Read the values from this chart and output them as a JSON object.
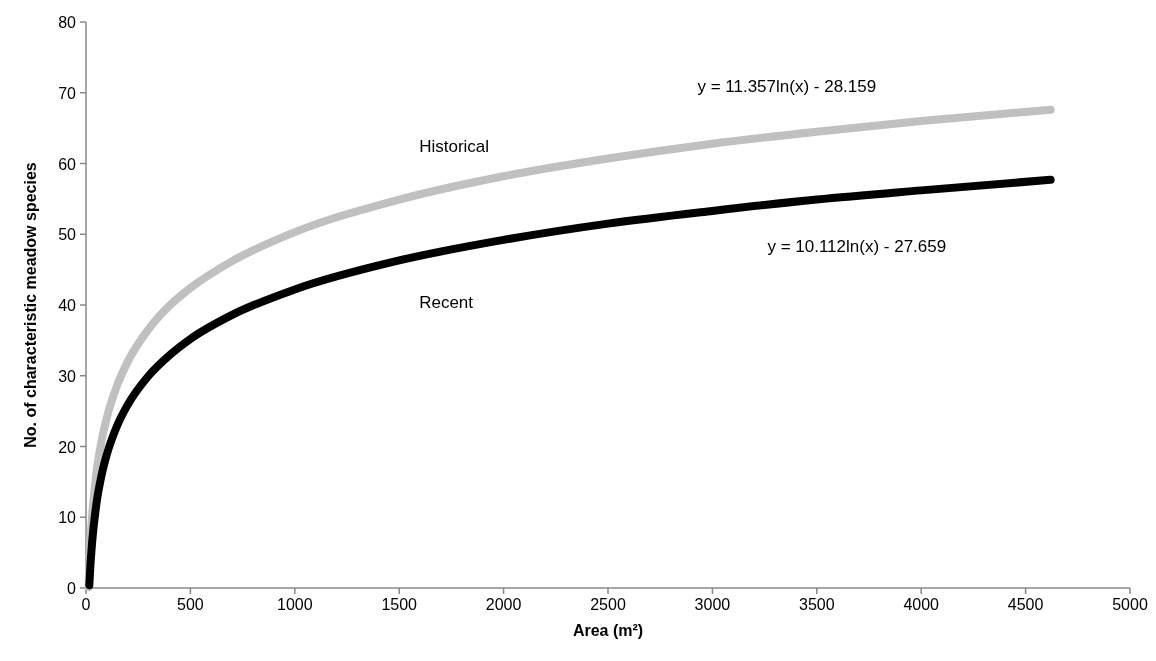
{
  "chart_data": {
    "type": "line",
    "xlabel": "Area (m²)",
    "ylabel": "No. of characteristic meadow species",
    "xlim": [
      0,
      5000
    ],
    "xticks": [
      0,
      500,
      1000,
      1500,
      2000,
      2500,
      3000,
      3500,
      4000,
      4500,
      5000
    ],
    "ylim": [
      0,
      80
    ],
    "yticks": [
      0,
      10,
      20,
      30,
      40,
      50,
      60,
      70,
      80
    ],
    "grid": false,
    "marker": "none",
    "line_style": "solid",
    "series": [
      {
        "name": "Historical",
        "color": "#c0c0c0",
        "x": [
          12,
          20,
          30,
          50,
          75,
          100,
          150,
          200,
          300,
          400,
          500,
          700,
          1000,
          1500,
          2000,
          2500,
          3000,
          3500,
          4000,
          4620
        ],
        "values": [
          0.1,
          5.9,
          10.5,
          16.3,
          20.9,
          24.1,
          28.7,
          32.0,
          36.6,
          39.9,
          42.4,
          46.2,
          50.3,
          54.9,
          58.2,
          60.7,
          62.8,
          64.5,
          66.0,
          67.6
        ]
      },
      {
        "name": "Recent",
        "color": "#000000",
        "x": [
          16,
          20,
          30,
          50,
          75,
          100,
          150,
          200,
          300,
          400,
          500,
          700,
          1000,
          1500,
          2000,
          2500,
          3000,
          3500,
          4000,
          4620
        ],
        "values": [
          0.4,
          2.6,
          6.7,
          11.9,
          16.0,
          18.9,
          23.0,
          25.9,
          30.0,
          32.9,
          35.2,
          38.6,
          42.2,
          46.3,
          49.2,
          51.5,
          53.3,
          54.9,
          56.2,
          57.7
        ]
      }
    ],
    "annotations": [
      "y = 11.357ln(x) - 28.159",
      "y = 10.112ln(x) - 27.659"
    ]
  }
}
